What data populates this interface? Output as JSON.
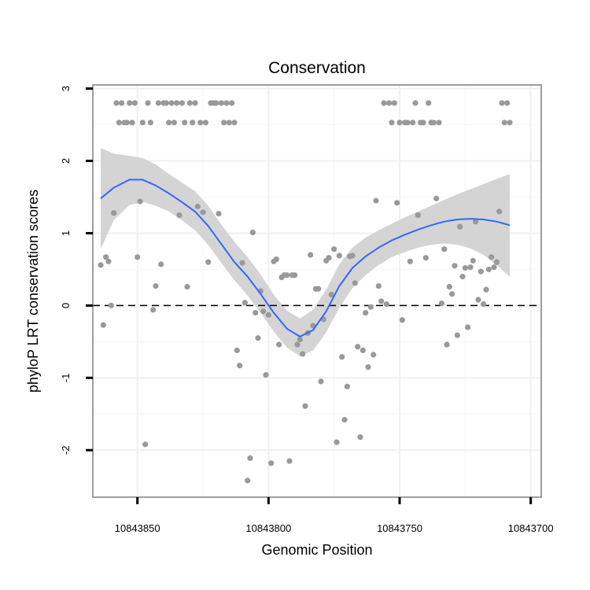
{
  "chart_data": {
    "type": "scatter",
    "title": "Conservation",
    "xlabel": "Genomic Position",
    "ylabel": "phyloP LRT conservation scores",
    "xlim": [
      10843867,
      10843696
    ],
    "x_reversed": true,
    "ylim": [
      -2.65,
      3.05
    ],
    "x_ticks": [
      10843850,
      10843800,
      10843750,
      10843700
    ],
    "x_tick_labels": [
      "10843850",
      "10843800",
      "10843750",
      "10843700"
    ],
    "y_ticks": [
      -2,
      -1,
      0,
      1,
      2,
      3
    ],
    "y_tick_labels": [
      "-2",
      "-1",
      "0",
      "1",
      "2",
      "3"
    ],
    "grid": true,
    "reference_line": {
      "y": 0,
      "style": "dashed",
      "color": "#000000"
    },
    "series": [
      {
        "name": "phyloP scores",
        "kind": "points",
        "color": "#999999",
        "points": [
          [
            10843864,
            0.56
          ],
          [
            10843863,
            -0.27
          ],
          [
            10843862,
            0.67
          ],
          [
            10843861,
            0.61
          ],
          [
            10843860,
            0.0
          ],
          [
            10843859,
            1.28
          ],
          [
            10843858,
            2.8
          ],
          [
            10843857,
            2.53
          ],
          [
            10843856,
            2.8
          ],
          [
            10843855,
            2.53
          ],
          [
            10843854,
            2.53
          ],
          [
            10843853,
            2.8
          ],
          [
            10843852,
            2.53
          ],
          [
            10843851,
            2.8
          ],
          [
            10843850,
            0.67
          ],
          [
            10843849,
            1.44
          ],
          [
            10843848,
            2.53
          ],
          [
            10843847,
            -1.92
          ],
          [
            10843846,
            2.8
          ],
          [
            10843845,
            2.53
          ],
          [
            10843844,
            -0.06
          ],
          [
            10843843,
            0.27
          ],
          [
            10843842,
            2.8
          ],
          [
            10843841,
            0.57
          ],
          [
            10843840,
            2.8
          ],
          [
            10843839,
            2.8
          ],
          [
            10843838,
            2.53
          ],
          [
            10843837,
            2.8
          ],
          [
            10843836,
            2.53
          ],
          [
            10843835,
            2.8
          ],
          [
            10843834,
            1.25
          ],
          [
            10843833,
            2.8
          ],
          [
            10843832,
            2.53
          ],
          [
            10843831,
            0.26
          ],
          [
            10843830,
            2.8
          ],
          [
            10843829,
            2.53
          ],
          [
            10843828,
            2.8
          ],
          [
            10843827,
            1.37
          ],
          [
            10843826,
            2.53
          ],
          [
            10843825,
            1.29
          ],
          [
            10843824,
            2.53
          ],
          [
            10843823,
            0.6
          ],
          [
            10843822,
            2.8
          ],
          [
            10843821,
            2.8
          ],
          [
            10843820,
            2.8
          ],
          [
            10843819,
            1.27
          ],
          [
            10843818,
            2.8
          ],
          [
            10843817,
            2.53
          ],
          [
            10843816,
            2.8
          ],
          [
            10843815,
            2.53
          ],
          [
            10843814,
            2.8
          ],
          [
            10843813,
            2.53
          ],
          [
            10843812,
            -0.62
          ],
          [
            10843811,
            -0.83
          ],
          [
            10843810,
            0.59
          ],
          [
            10843809,
            0.04
          ],
          [
            10843808,
            -2.42
          ],
          [
            10843807,
            -2.11
          ],
          [
            10843806,
            1.01
          ],
          [
            10843805,
            -0.1
          ],
          [
            10843804,
            -0.45
          ],
          [
            10843803,
            0.2
          ],
          [
            10843802,
            -0.08
          ],
          [
            10843801,
            -0.96
          ],
          [
            10843800,
            -0.13
          ],
          [
            10843799,
            -2.18
          ],
          [
            10843798,
            0.61
          ],
          [
            10843797,
            0.64
          ],
          [
            10843796,
            -0.54
          ],
          [
            10843795,
            0.39
          ],
          [
            10843794,
            0.42
          ],
          [
            10843793,
            0.42
          ],
          [
            10843792,
            -2.15
          ],
          [
            10843791,
            0.42
          ],
          [
            10843790,
            0.42
          ],
          [
            10843789,
            -0.54
          ],
          [
            10843788,
            -0.47
          ],
          [
            10843787,
            -0.67
          ],
          [
            10843786,
            -1.39
          ],
          [
            10843785,
            -0.38
          ],
          [
            10843784,
            0.7
          ],
          [
            10843783,
            -0.28
          ],
          [
            10843782,
            0.23
          ],
          [
            10843781,
            0.23
          ],
          [
            10843780,
            -1.05
          ],
          [
            10843779,
            -0.19
          ],
          [
            10843778,
            0.62
          ],
          [
            10843777,
            0.66
          ],
          [
            10843776,
            0.15
          ],
          [
            10843775,
            0.78
          ],
          [
            10843774,
            -1.89
          ],
          [
            10843773,
            0.69
          ],
          [
            10843772,
            -0.71
          ],
          [
            10843771,
            -1.58
          ],
          [
            10843770,
            -1.12
          ],
          [
            10843769,
            0.68
          ],
          [
            10843768,
            0.69
          ],
          [
            10843767,
            0.31
          ],
          [
            10843766,
            -0.57
          ],
          [
            10843765,
            -1.82
          ],
          [
            10843764,
            -0.62
          ],
          [
            10843763,
            -0.1
          ],
          [
            10843762,
            -0.85
          ],
          [
            10843761,
            -0.02
          ],
          [
            10843760,
            -0.68
          ],
          [
            10843759,
            1.45
          ],
          [
            10843758,
            0.27
          ],
          [
            10843757,
            0.06
          ],
          [
            10843756,
            2.8
          ],
          [
            10843755,
            0.02
          ],
          [
            10843754,
            2.8
          ],
          [
            10843753,
            2.53
          ],
          [
            10843752,
            2.8
          ],
          [
            10843751,
            1.42
          ],
          [
            10843750,
            2.53
          ],
          [
            10843749,
            -0.2
          ],
          [
            10843748,
            2.53
          ],
          [
            10843747,
            2.53
          ],
          [
            10843746,
            0.61
          ],
          [
            10843745,
            2.53
          ],
          [
            10843744,
            2.8
          ],
          [
            10843743,
            1.25
          ],
          [
            10843742,
            2.53
          ],
          [
            10843741,
            2.53
          ],
          [
            10843740,
            0.66
          ],
          [
            10843739,
            2.8
          ],
          [
            10843738,
            2.53
          ],
          [
            10843737,
            2.53
          ],
          [
            10843736,
            1.48
          ],
          [
            10843735,
            2.53
          ],
          [
            10843734,
            0.03
          ],
          [
            10843733,
            0.78
          ],
          [
            10843732,
            -0.54
          ],
          [
            10843731,
            0.26
          ],
          [
            10843730,
            0.16
          ],
          [
            10843729,
            0.55
          ],
          [
            10843728,
            -0.41
          ],
          [
            10843727,
            1.09
          ],
          [
            10843726,
            0.4
          ],
          [
            10843725,
            0.52
          ],
          [
            10843724,
            -0.3
          ],
          [
            10843723,
            0.53
          ],
          [
            10843722,
            0.62
          ],
          [
            10843721,
            1.16
          ],
          [
            10843720,
            0.08
          ],
          [
            10843719,
            0.47
          ],
          [
            10843718,
            0.02
          ],
          [
            10843717,
            0.22
          ],
          [
            10843716,
            0.5
          ],
          [
            10843715,
            0.67
          ],
          [
            10843714,
            0.53
          ],
          [
            10843713,
            0.6
          ],
          [
            10843712,
            1.3
          ],
          [
            10843711,
            2.8
          ],
          [
            10843710,
            2.53
          ],
          [
            10843709,
            2.8
          ],
          [
            10843708,
            2.53
          ]
        ]
      },
      {
        "name": "smoothed fit",
        "kind": "line",
        "color": "#3366ff",
        "points": [
          [
            10843864,
            1.48
          ],
          [
            10843859,
            1.63
          ],
          [
            10843853,
            1.74
          ],
          [
            10843848,
            1.74
          ],
          [
            10843843,
            1.66
          ],
          [
            10843838,
            1.55
          ],
          [
            10843833,
            1.43
          ],
          [
            10843828,
            1.3
          ],
          [
            10843823,
            1.1
          ],
          [
            10843818,
            0.85
          ],
          [
            10843813,
            0.6
          ],
          [
            10843808,
            0.4
          ],
          [
            10843803,
            0.16
          ],
          [
            10843798,
            -0.1
          ],
          [
            10843793,
            -0.32
          ],
          [
            10843788,
            -0.43
          ],
          [
            10843783,
            -0.34
          ],
          [
            10843778,
            -0.08
          ],
          [
            10843773,
            0.27
          ],
          [
            10843768,
            0.52
          ],
          [
            10843763,
            0.68
          ],
          [
            10843758,
            0.8
          ],
          [
            10843753,
            0.9
          ],
          [
            10843748,
            0.98
          ],
          [
            10843743,
            1.05
          ],
          [
            10843738,
            1.11
          ],
          [
            10843733,
            1.16
          ],
          [
            10843728,
            1.19
          ],
          [
            10843723,
            1.2
          ],
          [
            10843718,
            1.19
          ],
          [
            10843713,
            1.16
          ],
          [
            10843708,
            1.11
          ]
        ]
      },
      {
        "name": "confidence band",
        "kind": "band",
        "color": "#d4d4d4",
        "points": [
          [
            10843864,
            0.78,
            2.18
          ],
          [
            10843859,
            1.18,
            2.1
          ],
          [
            10843853,
            1.39,
            2.07
          ],
          [
            10843848,
            1.43,
            2.04
          ],
          [
            10843843,
            1.38,
            1.95
          ],
          [
            10843838,
            1.3,
            1.82
          ],
          [
            10843833,
            1.18,
            1.7
          ],
          [
            10843828,
            1.04,
            1.58
          ],
          [
            10843823,
            0.84,
            1.38
          ],
          [
            10843818,
            0.59,
            1.12
          ],
          [
            10843813,
            0.35,
            0.88
          ],
          [
            10843808,
            0.14,
            0.67
          ],
          [
            10843803,
            -0.1,
            0.43
          ],
          [
            10843798,
            -0.36,
            0.15
          ],
          [
            10843793,
            -0.58,
            -0.07
          ],
          [
            10843788,
            -0.7,
            -0.18
          ],
          [
            10843783,
            -0.62,
            -0.06
          ],
          [
            10843778,
            -0.37,
            0.22
          ],
          [
            10843773,
            -0.03,
            0.57
          ],
          [
            10843768,
            0.24,
            0.8
          ],
          [
            10843763,
            0.42,
            0.94
          ],
          [
            10843758,
            0.56,
            1.04
          ],
          [
            10843753,
            0.67,
            1.13
          ],
          [
            10843748,
            0.74,
            1.22
          ],
          [
            10843743,
            0.8,
            1.3
          ],
          [
            10843738,
            0.84,
            1.38
          ],
          [
            10843733,
            0.86,
            1.46
          ],
          [
            10843728,
            0.84,
            1.54
          ],
          [
            10843723,
            0.79,
            1.61
          ],
          [
            10843718,
            0.7,
            1.68
          ],
          [
            10843713,
            0.56,
            1.75
          ],
          [
            10843708,
            0.4,
            1.82
          ]
        ]
      }
    ]
  }
}
